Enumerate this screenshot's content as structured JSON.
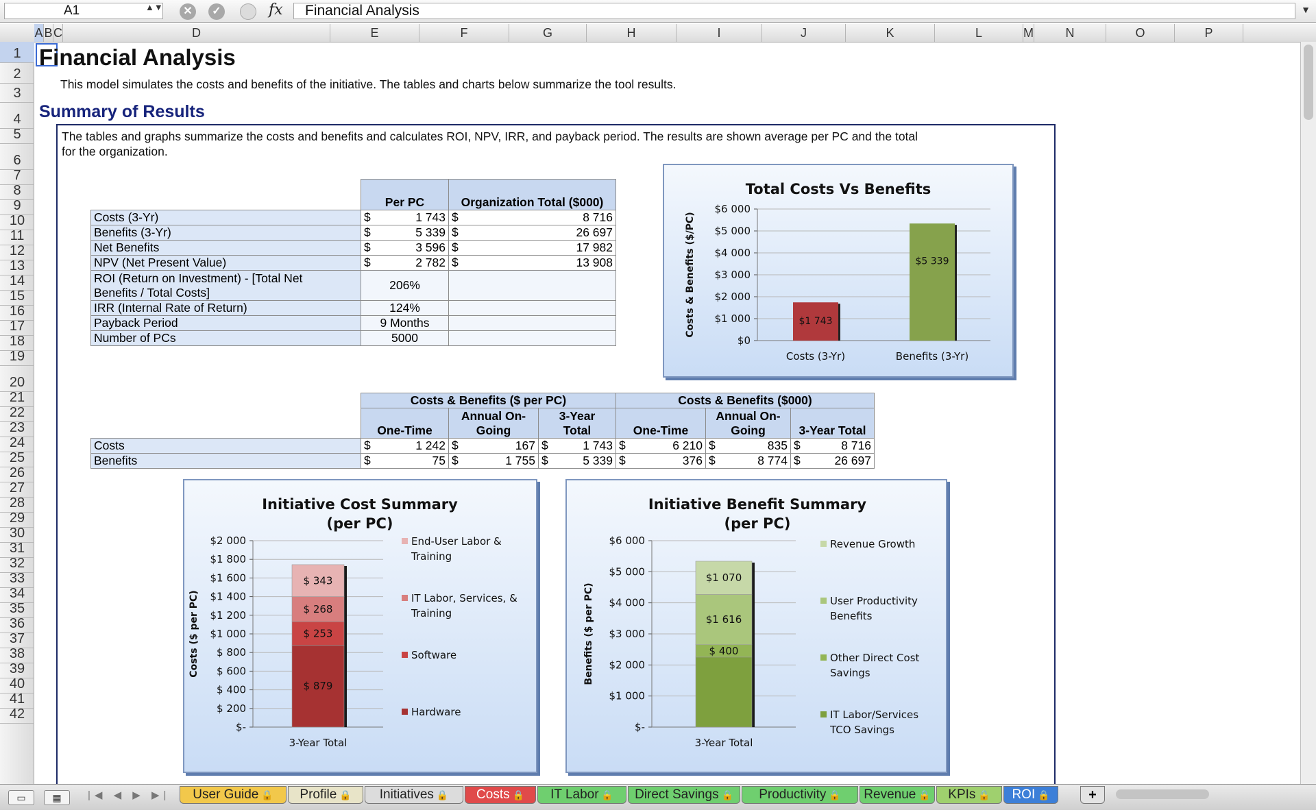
{
  "formula_bar": {
    "cell_ref": "A1",
    "stepper": "▲▼",
    "fx_label": "fx",
    "formula": "Financial Analysis",
    "dropdown": "▼"
  },
  "columns": [
    "A",
    "B",
    "C",
    "D",
    "E",
    "F",
    "G",
    "H",
    "I",
    "J",
    "K",
    "L",
    "M",
    "N",
    "O",
    "P"
  ],
  "rows": [
    "1",
    "2",
    "3",
    "4",
    "5",
    "6",
    "7",
    "8",
    "9",
    "10",
    "11",
    "12",
    "13",
    "14",
    "15",
    "16",
    "17",
    "18",
    "19",
    "20",
    "21",
    "22",
    "23",
    "24",
    "25",
    "26",
    "27",
    "28",
    "29",
    "30",
    "31",
    "32",
    "33",
    "34",
    "35",
    "36",
    "37",
    "38",
    "39",
    "40",
    "41",
    "42"
  ],
  "sheet": {
    "title": "Financial Analysis",
    "intro": "This model simulates the costs and benefits of the initiative.  The tables and charts below summarize the tool results.",
    "section_heading": "Summary of Results",
    "box_note_line1": "The tables and graphs summarize the costs and benefits and calculates ROI, NPV, IRR, and payback period.  The results are shown average per PC and the total",
    "box_note_line2": "for the organization."
  },
  "summary_table": {
    "headers": {
      "per_pc": "Per PC",
      "org_total": "Organization Total ($000)"
    },
    "currency_rows": [
      {
        "label": "Costs (3-Yr)",
        "sym1": "$",
        "per_pc": "1 743",
        "sym2": "$",
        "org": "8 716"
      },
      {
        "label": "Benefits (3-Yr)",
        "sym1": "$",
        "per_pc": "5 339",
        "sym2": "$",
        "org": "26 697"
      },
      {
        "label": "Net Benefits",
        "sym1": "$",
        "per_pc": "3 596",
        "sym2": "$",
        "org": "17 982"
      },
      {
        "label": "NPV (Net Present Value)",
        "sym1": "$",
        "per_pc": "2 782",
        "sym2": "$",
        "org": "13 908"
      }
    ],
    "roi": {
      "label_line1": "ROI (Return on Investment) - [Total Net",
      "label_line2": "Benefits / Total Costs]",
      "value": "206%"
    },
    "single_rows": [
      {
        "label": "IRR (Internal Rate of Return)",
        "value": "124%"
      },
      {
        "label": "Payback Period",
        "value": "9 Months"
      },
      {
        "label": "Number of PCs",
        "value": "5000"
      }
    ]
  },
  "cb_table": {
    "group1": "Costs & Benefits ($ per PC)",
    "group2": "Costs & Benefits ($000)",
    "sub_headers": {
      "one_time": "One-Time",
      "annual_l1": "Annual On-",
      "annual_l2": "Going",
      "three_l1": "3-Year",
      "three_l2": "Total",
      "three_total": "3-Year Total"
    },
    "rows": [
      {
        "label": "Costs",
        "cells": [
          "$",
          "1 242",
          "$",
          "167",
          "$",
          "1 743",
          "$",
          "6 210",
          "$",
          "835",
          "$",
          "8 716"
        ]
      },
      {
        "label": "Benefits",
        "cells": [
          "$",
          "75",
          "$",
          "1 755",
          "$",
          "5 339",
          "$",
          "376",
          "$",
          "8 774",
          "$",
          "26 697"
        ]
      }
    ]
  },
  "chart_data": [
    {
      "type": "bar",
      "title": "Total Costs Vs Benefits",
      "ylabel": "Costs & Benefits ($/PC)",
      "categories": [
        "Costs (3-Yr)",
        "Benefits (3-Yr)"
      ],
      "values": [
        1743,
        5339
      ],
      "data_labels": [
        "$1 743",
        "$5 339"
      ],
      "colors": [
        "#b0393c",
        "#86a24c"
      ],
      "ylim": [
        0,
        6000
      ],
      "yticks": [
        0,
        1000,
        2000,
        3000,
        4000,
        5000,
        6000
      ],
      "ytick_labels": [
        "$0",
        "$1 000",
        "$2 000",
        "$3 000",
        "$4 000",
        "$5 000",
        "$6 000"
      ],
      "grid": true
    },
    {
      "type": "bar",
      "stacked": true,
      "title_line1": "Initiative Cost Summary",
      "title_line2": "(per PC)",
      "ylabel": "Costs ($ per PC)",
      "categories": [
        "3-Year Total"
      ],
      "series": [
        {
          "name": "Hardware",
          "values": [
            879
          ],
          "label": "$ 879",
          "color": "#a63232"
        },
        {
          "name": "Software",
          "values": [
            253
          ],
          "label": "$ 253",
          "color": "#c94444"
        },
        {
          "name": "IT Labor, Services, & Training",
          "values": [
            268
          ],
          "label": "$ 268",
          "color": "#d87e7e"
        },
        {
          "name": "End-User Labor & Training",
          "values": [
            343
          ],
          "label": "$ 343",
          "color": "#e7b3b3"
        }
      ],
      "legend": [
        {
          "line1": "End-User Labor &",
          "line2": "Training",
          "color": "#e7b3b3"
        },
        {
          "line1": "IT Labor, Services, &",
          "line2": "Training",
          "color": "#d87e7e"
        },
        {
          "line1": "Software",
          "line2": "",
          "color": "#c94444"
        },
        {
          "line1": "Hardware",
          "line2": "",
          "color": "#a63232"
        }
      ],
      "legend_position": "right",
      "ylim": [
        0,
        2000
      ],
      "yticks": [
        0,
        200,
        400,
        600,
        800,
        1000,
        1200,
        1400,
        1600,
        1800,
        2000
      ],
      "ytick_labels": [
        "$-",
        "$ 200",
        "$ 400",
        "$ 600",
        "$ 800",
        "$1 000",
        "$1 200",
        "$1 400",
        "$1 600",
        "$1 800",
        "$2 000"
      ],
      "grid": true
    },
    {
      "type": "bar",
      "stacked": true,
      "title_line1": "Initiative Benefit Summary",
      "title_line2": "(per PC)",
      "ylabel": "Benefits ($ per PC)",
      "categories": [
        "3-Year Total"
      ],
      "series": [
        {
          "name": "IT Labor/Services TCO Savings",
          "values": [
            2253
          ],
          "label": "",
          "color": "#7ea03e"
        },
        {
          "name": "Other Direct Cost Savings",
          "values": [
            400
          ],
          "label": "$ 400",
          "color": "#93b555"
        },
        {
          "name": "User Productivity Benefits",
          "values": [
            1616
          ],
          "label": "$1 616",
          "color": "#aac67c"
        },
        {
          "name": "Revenue Growth",
          "values": [
            1070
          ],
          "label": "$1 070",
          "color": "#c6d8a8"
        }
      ],
      "legend": [
        {
          "line1": "Revenue Growth",
          "line2": "",
          "color": "#c6d8a8"
        },
        {
          "line1": "User Productivity",
          "line2": "Benefits",
          "color": "#aac67c"
        },
        {
          "line1": "Other Direct Cost",
          "line2": "Savings",
          "color": "#93b555"
        },
        {
          "line1": "IT Labor/Services",
          "line2": "TCO Savings",
          "color": "#7ea03e"
        }
      ],
      "legend_position": "right",
      "ylim": [
        0,
        6000
      ],
      "yticks": [
        0,
        1000,
        2000,
        3000,
        4000,
        5000,
        6000
      ],
      "ytick_labels": [
        "$-",
        "$1 000",
        "$2 000",
        "$3 000",
        "$4 000",
        "$5 000",
        "$6 000"
      ],
      "grid": true
    }
  ],
  "tabs": [
    {
      "label": "User Guide",
      "color": "#f2c84b"
    },
    {
      "label": "Profile",
      "color": "#e8e4c8"
    },
    {
      "label": "Initiatives",
      "color": "#dcdcdc"
    },
    {
      "label": "Costs",
      "color": "#e04a4a",
      "text_color": "#ffffff"
    },
    {
      "label": "IT Labor",
      "color": "#6fcf6f"
    },
    {
      "label": "Direct Savings",
      "color": "#6fcf6f"
    },
    {
      "label": "Productivity",
      "color": "#6fcf6f"
    },
    {
      "label": "Revenue",
      "color": "#6fcf6f"
    },
    {
      "label": "KPIs",
      "color": "#9fd06e"
    },
    {
      "label": "ROI",
      "color": "#3c7fd8",
      "text_color": "#ffffff"
    }
  ],
  "tab_controls": {
    "add": "+",
    "nav": "|◀ ◀ ▶ ▶|",
    "lock_icon": "🔒"
  }
}
